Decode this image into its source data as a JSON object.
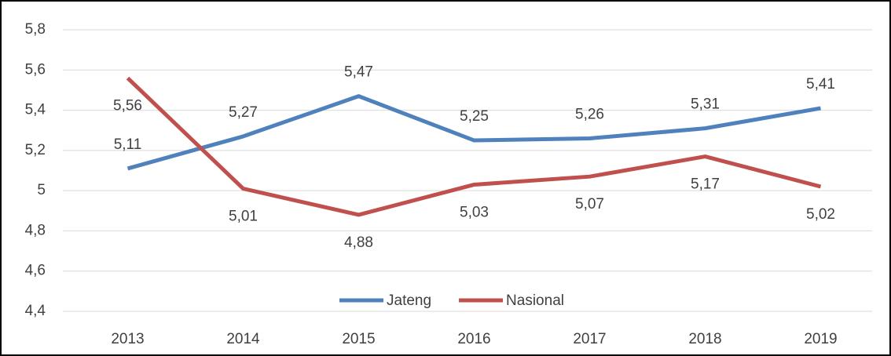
{
  "chart_data": {
    "type": "line",
    "categories": [
      "2013",
      "2014",
      "2015",
      "2016",
      "2017",
      "2018",
      "2019"
    ],
    "series": [
      {
        "name": "Jateng",
        "color": "#4f81bd",
        "values": [
          5.11,
          5.27,
          5.47,
          5.25,
          5.26,
          5.31,
          5.41
        ],
        "value_labels": [
          "5,11",
          "5,27",
          "5,47",
          "5,25",
          "5,26",
          "5,31",
          "5,41"
        ]
      },
      {
        "name": "Nasional",
        "color": "#c0504d",
        "values": [
          5.56,
          5.01,
          4.88,
          5.03,
          5.07,
          5.17,
          5.02
        ],
        "value_labels": [
          "5,56",
          "5,01",
          "4,88",
          "5,03",
          "5,07",
          "5,17",
          "5,02"
        ]
      }
    ],
    "ylim": [
      4.4,
      5.8
    ],
    "yticks": [
      {
        "value": 4.4,
        "label": "4,4"
      },
      {
        "value": 4.6,
        "label": "4,6"
      },
      {
        "value": 4.8,
        "label": "4,8"
      },
      5,
      {
        "value": 5.2,
        "label": "5,2"
      },
      {
        "value": 5.4,
        "label": "5,4"
      },
      {
        "value": 5.6,
        "label": "5,6"
      },
      {
        "value": 5.8,
        "label": "5,8"
      }
    ],
    "grid": true,
    "legend": "bottom"
  }
}
